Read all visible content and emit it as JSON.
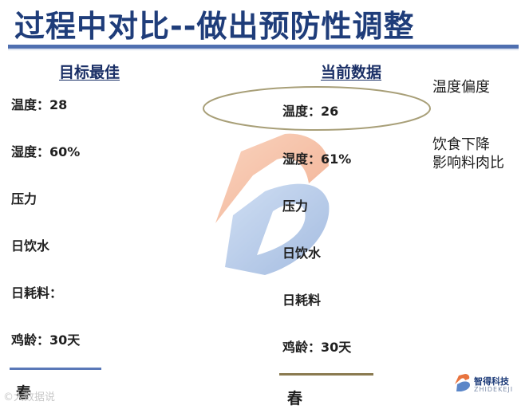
{
  "slide": {
    "title": "过程中对比--做出预防性调整",
    "left_column": {
      "heading": "目标最佳",
      "rows": [
        "温度：28",
        "湿度：60%",
        "压力",
        "日饮水",
        "日耗料：",
        "鸡龄：30天"
      ],
      "season": "春"
    },
    "right_column": {
      "heading": "当前数据",
      "rows": [
        "温度：26",
        "湿度：61%",
        "压力",
        "日饮水",
        "日耗料",
        "鸡龄：30天"
      ],
      "season": "春"
    },
    "notes": {
      "temperature": "温度偏度",
      "feed_line1": "饮食下降",
      "feed_line2": "影响料肉比"
    },
    "brand": {
      "name": "智得科技",
      "sub": "ZHIDEKEJI"
    },
    "source_watermark": "©大数据说"
  },
  "colors": {
    "title": "#1f3d7a",
    "title_rule": "#4f6fb0",
    "left_rule": "#5a78b8",
    "right_rule": "#8a7a50",
    "ellipse": "#a89f78",
    "logo_orange": "#f0a070",
    "logo_blue": "#7fa6d8"
  }
}
